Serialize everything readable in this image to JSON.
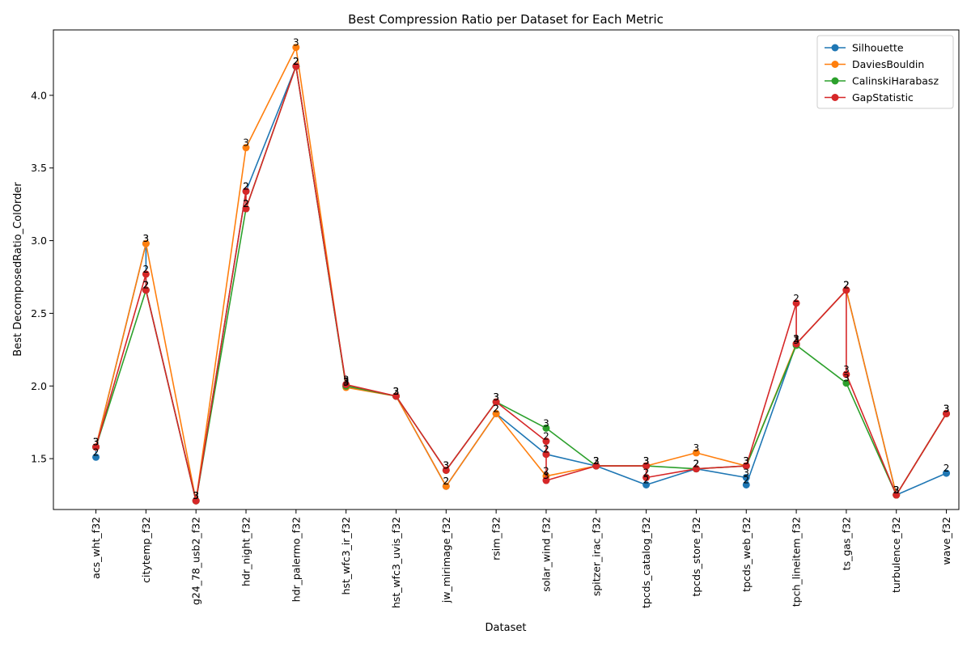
{
  "chart_data": {
    "type": "line",
    "title": "Best Compression Ratio per Dataset for Each Metric",
    "xlabel": "Dataset",
    "ylabel": "Best DecomposedRatio_ColOrder",
    "ylim": [
      1.15,
      4.45
    ],
    "yticks": [
      "1.5",
      "2.0",
      "2.5",
      "3.0",
      "3.5",
      "4.0"
    ],
    "legend_position": "top-right",
    "grid": false,
    "categories": [
      "acs_wht_f32",
      "citytemp_f32",
      "g24_78_usb2_f32",
      "hdr_night_f32",
      "hdr_palermo_f32",
      "hst_wfc3_ir_f32",
      "hst_wfc3_uvis_f32",
      "jw_mirimage_f32",
      "rsim_f32",
      "solar_wind_f32",
      "spitzer_irac_f32",
      "tpcds_catalog_f32",
      "tpcds_store_f32",
      "tpcds_web_f32",
      "tpch_lineitem_f32",
      "ts_gas_f32",
      "turbulence_f32",
      "wave_f32"
    ],
    "series": [
      {
        "name": "Silhouette",
        "color": "#1f77b4",
        "points": [
          {
            "x": "acs_wht_f32",
            "y": 1.51,
            "label": "2"
          },
          {
            "x": "acs_wht_f32",
            "y": 1.58,
            "label": "3"
          },
          {
            "x": "citytemp_f32",
            "y": 2.98,
            "label": "3"
          },
          {
            "x": "citytemp_f32",
            "y": 2.66,
            "label": "2"
          },
          {
            "x": "g24_78_usb2_f32",
            "y": 1.21,
            "label": "3"
          },
          {
            "x": "hdr_night_f32",
            "y": 3.34,
            "label": "2"
          },
          {
            "x": "hdr_palermo_f32",
            "y": 4.2,
            "label": "2"
          },
          {
            "x": "hst_wfc3_ir_f32",
            "y": 2.0,
            "label": "3"
          },
          {
            "x": "hst_wfc3_uvis_f32",
            "y": 1.93,
            "label": "2"
          },
          {
            "x": "jw_mirimage_f32",
            "y": 1.31,
            "label": "2"
          },
          {
            "x": "rsim_f32",
            "y": 1.81,
            "label": "2"
          },
          {
            "x": "solar_wind_f32",
            "y": 1.53,
            "label": "2"
          },
          {
            "x": "spitzer_irac_f32",
            "y": 1.45,
            "label": "2"
          },
          {
            "x": "tpcds_catalog_f32",
            "y": 1.32,
            "label": "2"
          },
          {
            "x": "tpcds_store_f32",
            "y": 1.43,
            "label": "2"
          },
          {
            "x": "tpcds_web_f32",
            "y": 1.37,
            "label": "3"
          },
          {
            "x": "tpcds_web_f32",
            "y": 1.32,
            "label": "2"
          },
          {
            "x": "tpch_lineitem_f32",
            "y": 2.29,
            "label": "2"
          },
          {
            "x": "ts_gas_f32",
            "y": 2.66,
            "label": "2"
          },
          {
            "x": "turbulence_f32",
            "y": 1.25,
            "label": "2"
          },
          {
            "x": "wave_f32",
            "y": 1.4,
            "label": "2"
          }
        ]
      },
      {
        "name": "DaviesBouldin",
        "color": "#ff7f0e",
        "points": [
          {
            "x": "acs_wht_f32",
            "y": 1.58,
            "label": "3"
          },
          {
            "x": "citytemp_f32",
            "y": 2.98,
            "label": "3"
          },
          {
            "x": "g24_78_usb2_f32",
            "y": 1.21,
            "label": "3"
          },
          {
            "x": "hdr_night_f32",
            "y": 3.64,
            "label": "3"
          },
          {
            "x": "hdr_palermo_f32",
            "y": 4.33,
            "label": "3"
          },
          {
            "x": "hst_wfc3_ir_f32",
            "y": 1.99,
            "label": "3"
          },
          {
            "x": "hst_wfc3_uvis_f32",
            "y": 1.93,
            "label": "3"
          },
          {
            "x": "jw_mirimage_f32",
            "y": 1.31,
            "label": "2"
          },
          {
            "x": "rsim_f32",
            "y": 1.81,
            "label": "2"
          },
          {
            "x": "solar_wind_f32",
            "y": 1.38,
            "label": "2"
          },
          {
            "x": "spitzer_irac_f32",
            "y": 1.45,
            "label": "2"
          },
          {
            "x": "tpcds_catalog_f32",
            "y": 1.45,
            "label": "3"
          },
          {
            "x": "tpcds_store_f32",
            "y": 1.54,
            "label": "3"
          },
          {
            "x": "tpcds_web_f32",
            "y": 1.45,
            "label": "3"
          },
          {
            "x": "tpch_lineitem_f32",
            "y": 2.29,
            "label": "2"
          },
          {
            "x": "ts_gas_f32",
            "y": 2.66,
            "label": "2"
          },
          {
            "x": "turbulence_f32",
            "y": 1.25,
            "label": "3"
          },
          {
            "x": "wave_f32",
            "y": 1.81,
            "label": "3"
          }
        ]
      },
      {
        "name": "CalinskiHarabasz",
        "color": "#2ca02c",
        "points": [
          {
            "x": "acs_wht_f32",
            "y": 1.58,
            "label": "3"
          },
          {
            "x": "citytemp_f32",
            "y": 2.66,
            "label": "2"
          },
          {
            "x": "g24_78_usb2_f32",
            "y": 1.21,
            "label": "3"
          },
          {
            "x": "hdr_night_f32",
            "y": 3.22,
            "label": "2"
          },
          {
            "x": "hdr_palermo_f32",
            "y": 4.2,
            "label": "2"
          },
          {
            "x": "hst_wfc3_ir_f32",
            "y": 2.0,
            "label": "3"
          },
          {
            "x": "hst_wfc3_uvis_f32",
            "y": 1.93,
            "label": "3"
          },
          {
            "x": "jw_mirimage_f32",
            "y": 1.42,
            "label": "3"
          },
          {
            "x": "rsim_f32",
            "y": 1.89,
            "label": "3"
          },
          {
            "x": "solar_wind_f32",
            "y": 1.71,
            "label": "3"
          },
          {
            "x": "spitzer_irac_f32",
            "y": 1.45,
            "label": "3"
          },
          {
            "x": "tpcds_catalog_f32",
            "y": 1.45,
            "label": "3"
          },
          {
            "x": "tpcds_store_f32",
            "y": 1.43,
            "label": "2"
          },
          {
            "x": "tpcds_web_f32",
            "y": 1.45,
            "label": "3"
          },
          {
            "x": "tpch_lineitem_f32",
            "y": 2.28,
            "label": "3"
          },
          {
            "x": "ts_gas_f32",
            "y": 2.02,
            "label": "3"
          },
          {
            "x": "turbulence_f32",
            "y": 1.25,
            "label": "3"
          },
          {
            "x": "wave_f32",
            "y": 1.81,
            "label": "3"
          }
        ]
      },
      {
        "name": "GapStatistic",
        "color": "#d62728",
        "points": [
          {
            "x": "acs_wht_f32",
            "y": 1.58,
            "label": "3"
          },
          {
            "x": "citytemp_f32",
            "y": 2.77,
            "label": "2"
          },
          {
            "x": "citytemp_f32",
            "y": 2.66,
            "label": "2"
          },
          {
            "x": "g24_78_usb2_f32",
            "y": 1.21,
            "label": "3"
          },
          {
            "x": "hdr_night_f32",
            "y": 3.34,
            "label": "2"
          },
          {
            "x": "hdr_night_f32",
            "y": 3.22,
            "label": "2"
          },
          {
            "x": "hdr_palermo_f32",
            "y": 4.2,
            "label": "2"
          },
          {
            "x": "hst_wfc3_ir_f32",
            "y": 2.01,
            "label": "3"
          },
          {
            "x": "hst_wfc3_uvis_f32",
            "y": 1.93,
            "label": "3"
          },
          {
            "x": "jw_mirimage_f32",
            "y": 1.42,
            "label": "3"
          },
          {
            "x": "rsim_f32",
            "y": 1.89,
            "label": "3"
          },
          {
            "x": "solar_wind_f32",
            "y": 1.62,
            "label": "2"
          },
          {
            "x": "solar_wind_f32",
            "y": 1.53,
            "label": "2"
          },
          {
            "x": "solar_wind_f32",
            "y": 1.35,
            "label": "3"
          },
          {
            "x": "spitzer_irac_f32",
            "y": 1.45,
            "label": "3"
          },
          {
            "x": "tpcds_catalog_f32",
            "y": 1.45,
            "label": "3"
          },
          {
            "x": "tpcds_catalog_f32",
            "y": 1.37,
            "label": "2"
          },
          {
            "x": "tpcds_store_f32",
            "y": 1.43,
            "label": "2"
          },
          {
            "x": "tpcds_web_f32",
            "y": 1.45,
            "label": "3"
          },
          {
            "x": "tpch_lineitem_f32",
            "y": 2.57,
            "label": "2"
          },
          {
            "x": "tpch_lineitem_f32",
            "y": 2.29,
            "label": "3"
          },
          {
            "x": "ts_gas_f32",
            "y": 2.66,
            "label": "2"
          },
          {
            "x": "ts_gas_f32",
            "y": 2.08,
            "label": "3"
          },
          {
            "x": "turbulence_f32",
            "y": 1.25,
            "label": "3"
          },
          {
            "x": "wave_f32",
            "y": 1.81,
            "label": "3"
          }
        ]
      }
    ]
  }
}
